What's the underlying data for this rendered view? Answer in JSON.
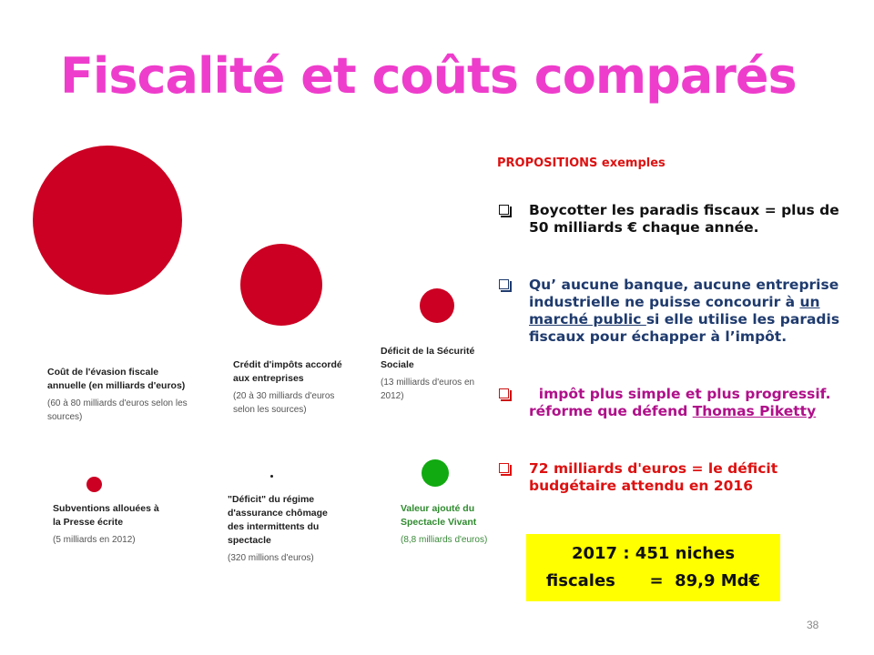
{
  "slide": {
    "title": "Fiscalité et coûts comparés",
    "page_number": "38"
  },
  "infographic": {
    "items": [
      {
        "label": "Coût de l'évasion fiscale annuelle (en milliards d'euros)",
        "source": "(60 à 80 milliards d'euros selon les sources)",
        "color": "#cc0022"
      },
      {
        "label": "Crédit d'impôts accordé aux entreprises",
        "source": "(20 à 30 milliards d'euros selon les sources)",
        "color": "#cc0022"
      },
      {
        "label": "Déficit de la Sécurité Sociale",
        "source": "(13 milliards d'euros en 2012)",
        "color": "#cc0022"
      },
      {
        "label": "Subventions allouées à la Presse écrite",
        "source": "(5 milliards en 2012)",
        "color": "#cc0022"
      },
      {
        "label": "\"Déficit\" du régime d'assurance chômage des intermittents du spectacle",
        "source": "(320 millions d'euros)",
        "color": "#1e1e1e"
      },
      {
        "label": "Valeur ajouté du Spectacle Vivant",
        "source": "(8,8 milliards d'euros)",
        "color": "#11aa11"
      }
    ]
  },
  "propositions": {
    "heading": "PROPOSITIONS  exemples",
    "items": [
      {
        "color": "#111111",
        "text": "Boycotter les paradis fiscaux = plus de  50 milliards € chaque année."
      },
      {
        "color": "#1f3b6e",
        "before": "Qu’ aucune banque, aucune entreprise industrielle ne puisse concourir à ",
        "link": "un marché public ",
        "after": "si elle utilise les paradis fiscaux pour échapper à l’impôt."
      },
      {
        "color": "#b0108a",
        "before": "  impôt plus simple et plus progressif. réforme que défend ",
        "link": "Thomas Piketty",
        "after": ""
      },
      {
        "color": "#dd1111",
        "text": "72 milliards d'euros = le déficit budgétaire attendu en 2016"
      }
    ]
  },
  "niches": {
    "line1": "2017 : 451 niches",
    "line2": "fiscales      =  89,9 Md€"
  }
}
